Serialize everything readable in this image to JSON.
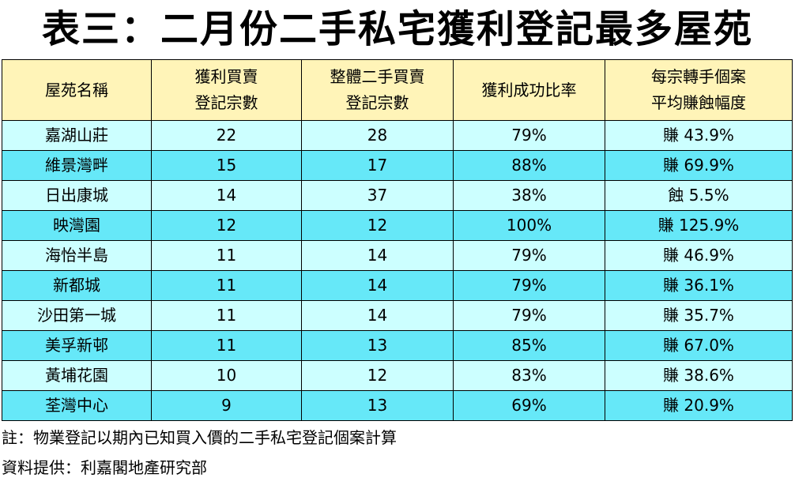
{
  "title": "表三：二月份二手私宅獲利登記最多屋苑",
  "table": {
    "headers": [
      {
        "line1": "屋苑名稱",
        "line2": ""
      },
      {
        "line1": "獲利買賣",
        "line2": "登記宗數"
      },
      {
        "line1": "整體二手買賣",
        "line2": "登記宗數"
      },
      {
        "line1": "獲利成功比率",
        "line2": ""
      },
      {
        "line1": "每宗轉手個案",
        "line2": "平均賺蝕幅度"
      }
    ],
    "rows": [
      [
        "嘉湖山莊",
        "22",
        "28",
        "79%",
        "賺 43.9%"
      ],
      [
        "維景灣畔",
        "15",
        "17",
        "88%",
        "賺 69.9%"
      ],
      [
        "日出康城",
        "14",
        "37",
        "38%",
        "蝕 5.5%"
      ],
      [
        "映灣園",
        "12",
        "12",
        "100%",
        "賺 125.9%"
      ],
      [
        "海怡半島",
        "11",
        "14",
        "79%",
        "賺 46.9%"
      ],
      [
        "新都城",
        "11",
        "14",
        "79%",
        "賺 36.1%"
      ],
      [
        "沙田第一城",
        "11",
        "14",
        "79%",
        "賺 35.7%"
      ],
      [
        "美孚新邨",
        "11",
        "13",
        "85%",
        "賺 67.0%"
      ],
      [
        "黃埔花園",
        "10",
        "12",
        "83%",
        "賺 38.6%"
      ],
      [
        "荃灣中心",
        "9",
        "13",
        "69%",
        "賺 20.9%"
      ]
    ]
  },
  "notes": {
    "note": "註：物業登記以期內已知買入價的二手私宅登記個案計算",
    "source": "資料提供：利嘉閣地產研究部"
  },
  "colors": {
    "header_bg": "#fff4b8",
    "row_light": "#ccffff",
    "row_dark": "#66e8f8",
    "border": "#000000"
  }
}
